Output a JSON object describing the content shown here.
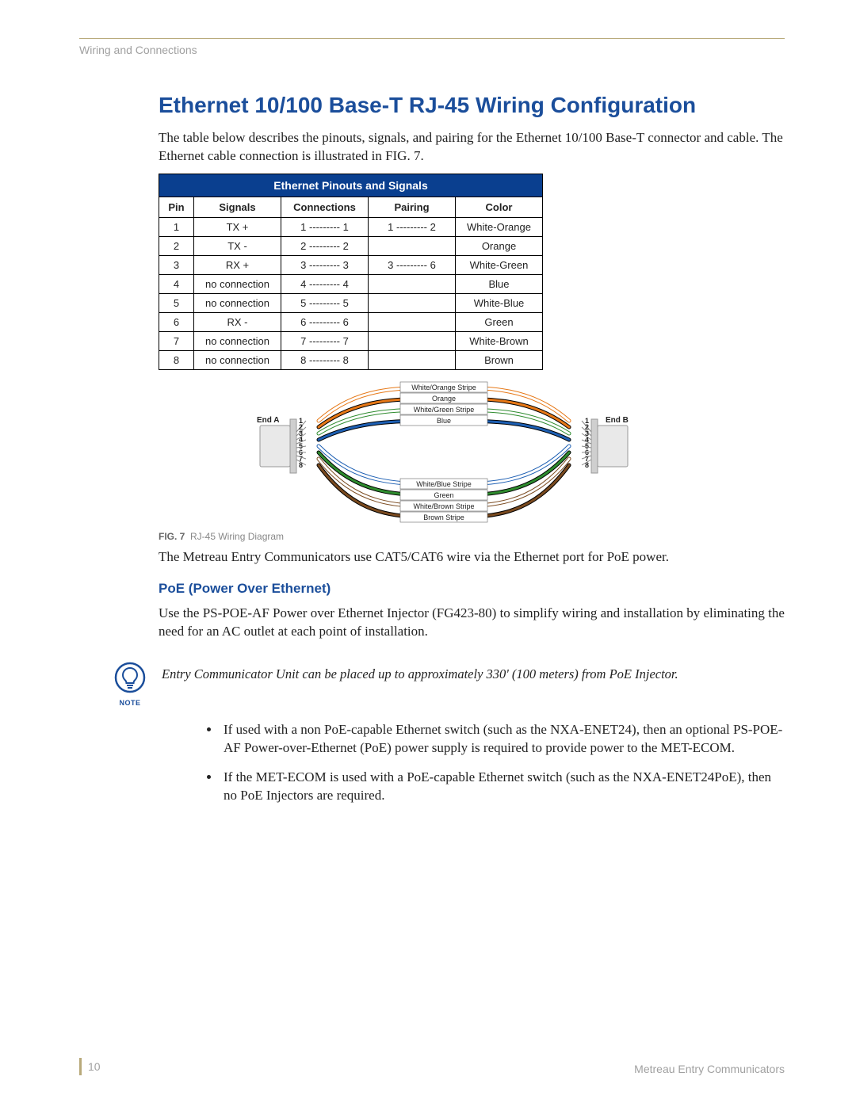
{
  "header": {
    "section": "Wiring and Connections"
  },
  "title": "Ethernet 10/100 Base-T RJ-45 Wiring Configuration",
  "intro": "The table below describes the pinouts, signals, and pairing for the Ethernet 10/100 Base-T connector and cable. The Ethernet cable connection is illustrated in FIG. 7.",
  "table": {
    "title": "Ethernet Pinouts and Signals",
    "columns": [
      "Pin",
      "Signals",
      "Connections",
      "Pairing",
      "Color"
    ],
    "rows": [
      [
        "1",
        "TX +",
        "1 --------- 1",
        "1 --------- 2",
        "White-Orange"
      ],
      [
        "2",
        "TX -",
        "2 --------- 2",
        "",
        "Orange"
      ],
      [
        "3",
        "RX +",
        "3 --------- 3",
        "3 --------- 6",
        "White-Green"
      ],
      [
        "4",
        "no connection",
        "4 --------- 4",
        "",
        "Blue"
      ],
      [
        "5",
        "no connection",
        "5 --------- 5",
        "",
        "White-Blue"
      ],
      [
        "6",
        "RX -",
        "6 --------- 6",
        "",
        "Green"
      ],
      [
        "7",
        "no connection",
        "7 --------- 7",
        "",
        "White-Brown"
      ],
      [
        "8",
        "no connection",
        "8 --------- 8",
        "",
        "Brown"
      ]
    ]
  },
  "diagram": {
    "end_a": "End A",
    "end_b": "End B",
    "wires": [
      {
        "label": "White/Orange Stripe",
        "stroke": "#ffffff",
        "outline": "#e67817",
        "y": 0,
        "pinA": 1,
        "pinB": 1
      },
      {
        "label": "Orange",
        "stroke": "#e67817",
        "outline": "#000000",
        "y": 10,
        "pinA": 2,
        "pinB": 2
      },
      {
        "label": "White/Green Stripe",
        "stroke": "#ffffff",
        "outline": "#2e8b2e",
        "y": 20,
        "pinA": 3,
        "pinB": 3
      },
      {
        "label": "Blue",
        "stroke": "#1d5fb3",
        "outline": "#000000",
        "y": 30,
        "pinA": 4,
        "pinB": 4
      },
      {
        "label": "White/Blue Stripe",
        "stroke": "#ffffff",
        "outline": "#1d5fb3",
        "y": 40,
        "pinA": 5,
        "pinB": 5
      },
      {
        "label": "Green",
        "stroke": "#2e8b2e",
        "outline": "#000000",
        "y": 50,
        "pinA": 6,
        "pinB": 6
      },
      {
        "label": "White/Brown Stripe",
        "stroke": "#ffffff",
        "outline": "#7a4a1f",
        "y": 60,
        "pinA": 7,
        "pinB": 7
      },
      {
        "label": "Brown Stripe",
        "stroke": "#7a4a1f",
        "outline": "#000000",
        "y": 70,
        "pinA": 8,
        "pinB": 8
      }
    ],
    "caption_bold": "FIG. 7",
    "caption_rest": "RJ-45 Wiring Diagram"
  },
  "after_diagram": "The Metreau Entry Communicators use CAT5/CAT6 wire via the Ethernet port for PoE power.",
  "poe": {
    "heading": "PoE (Power Over Ethernet)",
    "text": "Use the PS-POE-AF Power over Ethernet Injector (FG423-80) to simplify wiring and installation by eliminating the need for an AC outlet at each point of installation."
  },
  "note": {
    "label": "NOTE",
    "text": "Entry Communicator Unit can be placed up to approximately 330' (100 meters) from PoE Injector."
  },
  "bullets": [
    "If used with a non PoE-capable Ethernet switch (such as the NXA-ENET24), then an optional PS-POE-AF Power-over-Ethernet (PoE) power supply is required to provide power to the MET-ECOM.",
    "If the MET-ECOM is used with a PoE-capable Ethernet switch (such as the NXA-ENET24PoE), then no PoE Injectors are required."
  ],
  "footer": {
    "page": "10",
    "doc": "Metreau Entry Communicators"
  }
}
